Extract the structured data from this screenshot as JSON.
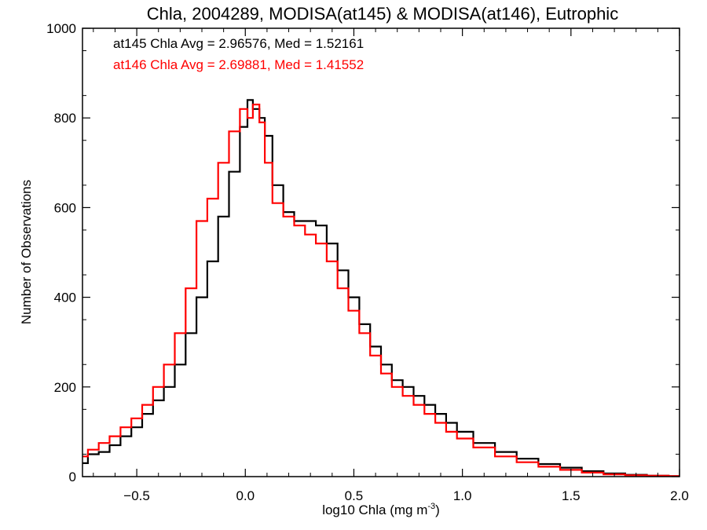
{
  "chart_data": {
    "type": "histogram",
    "title": "Chla, 2004289, MODISA(at145) & MODISA(at146), Eutrophic",
    "xlabel_main": "log10 Chla (mg m",
    "xlabel_sup": "-3",
    "xlabel_close": ")",
    "ylabel": "Number of Observations",
    "xlim": [
      -0.75,
      2.0
    ],
    "ylim": [
      0,
      1000
    ],
    "grid": false,
    "x_ticks": [
      -0.5,
      0.0,
      0.5,
      1.0,
      1.5,
      2.0
    ],
    "x_tick_labels": [
      "−0.5",
      "0.0",
      "0.5",
      "1.0",
      "1.5",
      "2.0"
    ],
    "y_ticks": [
      0,
      200,
      400,
      600,
      800,
      1000
    ],
    "y_tick_labels": [
      "0",
      "200",
      "400",
      "600",
      "800",
      "1000"
    ],
    "annotations": [
      {
        "text": "at145 Chla Avg = 2.96576, Med = 1.52161",
        "color": "#000000"
      },
      {
        "text": "at146 Chla Avg = 2.69881, Med = 1.41552",
        "color": "#ff0000"
      }
    ],
    "series": [
      {
        "color": "#000000",
        "x": [
          -0.75,
          -0.7,
          -0.65,
          -0.6,
          -0.55,
          -0.5,
          -0.45,
          -0.4,
          -0.35,
          -0.3,
          -0.25,
          -0.2,
          -0.15,
          -0.1,
          -0.05,
          0.0,
          0.02,
          0.05,
          0.08,
          0.1,
          0.15,
          0.2,
          0.25,
          0.3,
          0.35,
          0.4,
          0.45,
          0.5,
          0.55,
          0.6,
          0.65,
          0.7,
          0.75,
          0.8,
          0.85,
          0.9,
          0.95,
          1.0,
          1.1,
          1.2,
          1.3,
          1.4,
          1.5,
          1.6,
          1.7,
          1.8,
          1.9,
          2.0
        ],
        "y": [
          30,
          50,
          55,
          70,
          90,
          110,
          140,
          170,
          200,
          250,
          320,
          400,
          480,
          580,
          680,
          780,
          840,
          820,
          800,
          760,
          650,
          590,
          570,
          570,
          560,
          520,
          460,
          400,
          340,
          290,
          250,
          215,
          200,
          180,
          160,
          140,
          120,
          100,
          75,
          55,
          40,
          28,
          20,
          12,
          7,
          4,
          2,
          1
        ]
      },
      {
        "color": "#ff0000",
        "x": [
          -0.75,
          -0.7,
          -0.65,
          -0.6,
          -0.55,
          -0.5,
          -0.45,
          -0.4,
          -0.35,
          -0.3,
          -0.25,
          -0.2,
          -0.15,
          -0.1,
          -0.05,
          0.0,
          0.02,
          0.05,
          0.08,
          0.1,
          0.15,
          0.2,
          0.25,
          0.3,
          0.35,
          0.4,
          0.45,
          0.5,
          0.55,
          0.6,
          0.65,
          0.7,
          0.75,
          0.8,
          0.85,
          0.9,
          0.95,
          1.0,
          1.1,
          1.2,
          1.3,
          1.4,
          1.5,
          1.6,
          1.7,
          1.8,
          1.9,
          2.0
        ],
        "y": [
          45,
          60,
          75,
          90,
          110,
          130,
          160,
          200,
          250,
          320,
          420,
          570,
          620,
          700,
          770,
          820,
          800,
          830,
          790,
          700,
          610,
          580,
          560,
          540,
          520,
          480,
          420,
          370,
          320,
          270,
          230,
          200,
          180,
          160,
          140,
          120,
          100,
          85,
          65,
          45,
          32,
          22,
          15,
          9,
          5,
          3,
          2,
          1
        ]
      }
    ]
  }
}
